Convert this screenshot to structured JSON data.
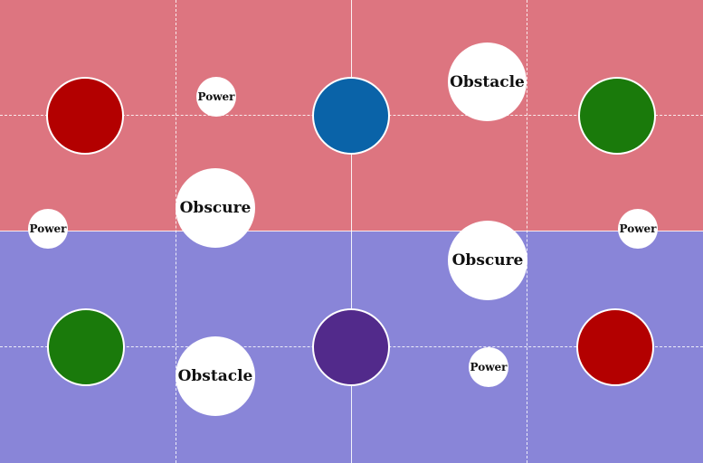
{
  "board": {
    "top_color": "#dd7580",
    "bottom_color": "#8985d8"
  },
  "tokens": [
    {
      "name": "red-token-top-left",
      "color": "#b30000"
    },
    {
      "name": "blue-token-top-center",
      "color": "#0a63a8"
    },
    {
      "name": "green-token-top-right",
      "color": "#1a7a0b"
    },
    {
      "name": "green-token-bottom-left",
      "color": "#1a7a0b"
    },
    {
      "name": "purple-token-bottom-center",
      "color": "#522a8b"
    },
    {
      "name": "red-token-bottom-right",
      "color": "#b30000"
    }
  ],
  "cards": {
    "power_top_left": "Power",
    "obstacle_top_right": "Obstacle",
    "obscure_top_left": "Obscure",
    "power_mid_left": "Power",
    "power_mid_right": "Power",
    "obscure_bottom_right": "Obscure",
    "obstacle_bottom_left": "Obstacle",
    "power_bottom_right": "Power"
  }
}
